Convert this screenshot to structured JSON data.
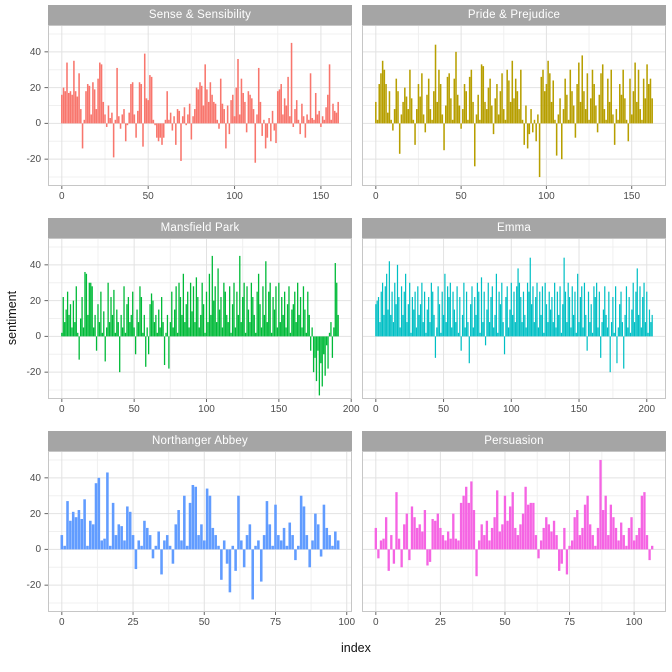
{
  "axes": {
    "x_label": "index",
    "y_label": "sentiment",
    "y_ticks": [
      40,
      20,
      0,
      -20
    ],
    "ylim": [
      -35,
      55
    ]
  },
  "theme": {
    "strip_bg": "#A5A5A5",
    "strip_text": "#FFFFFF",
    "panel_bg": "#FFFFFF",
    "grid_major": "#E2E2E2",
    "grid_minor": "#F0F0F0",
    "panel_border": "#C6C6C6",
    "tick_mark": "#666666",
    "tick_text": "#4D4D4D"
  },
  "chart_data": {
    "type": "bar",
    "title": "",
    "xlabel": "index",
    "ylabel": "sentiment",
    "ylim": [
      -35,
      55
    ],
    "y_major_ticks": [
      -20,
      0,
      20,
      40
    ],
    "grid": true,
    "legend": "none",
    "facets": [
      {
        "title": "Sense & Sensibility",
        "color": "#F8766D",
        "x_ticks": [
          0,
          50,
          100,
          150
        ],
        "values": [
          16,
          20,
          18,
          34,
          17,
          18,
          16,
          35,
          18,
          15,
          28,
          8,
          -14,
          2,
          18,
          22,
          21,
          5,
          23,
          19,
          8,
          25,
          34,
          33,
          12,
          5,
          -2,
          10,
          3,
          6,
          -19,
          2,
          31,
          4,
          -3,
          5,
          8,
          -10,
          -1,
          6,
          22,
          23,
          5,
          -8,
          7,
          23,
          22,
          -13,
          39,
          14,
          13,
          27,
          26,
          2,
          -1,
          -8,
          -10,
          -8,
          -12,
          -8,
          2,
          18,
          2,
          6,
          -4,
          4,
          -12,
          8,
          7,
          -21,
          4,
          9,
          -1,
          5,
          11,
          -9,
          4,
          8,
          20,
          19,
          23,
          21,
          10,
          33,
          19,
          12,
          23,
          16,
          12,
          11,
          2,
          -3,
          25,
          11,
          8,
          -14,
          10,
          -6,
          13,
          16,
          4,
          20,
          36,
          5,
          25,
          17,
          12,
          -5,
          18,
          16,
          14,
          8,
          -22,
          5,
          31,
          12,
          -7,
          2,
          -14,
          -8,
          3,
          -10,
          7,
          -4,
          -11,
          18,
          19,
          22,
          5,
          14,
          10,
          26,
          4,
          45,
          -2,
          8,
          13,
          2,
          -6,
          11,
          4,
          -8,
          5,
          2,
          28,
          3,
          2,
          17,
          5,
          7,
          -2,
          4,
          2,
          9,
          16,
          33,
          2,
          11,
          7,
          6,
          12
        ]
      },
      {
        "title": "Pride & Prejudice",
        "color": "#B79F00",
        "x_ticks": [
          0,
          50,
          100,
          150
        ],
        "values": [
          12,
          2,
          22,
          28,
          35,
          30,
          22,
          6,
          18,
          2,
          -4,
          8,
          25,
          18,
          -17,
          5,
          12,
          20,
          15,
          8,
          30,
          14,
          2,
          -12,
          8,
          22,
          15,
          28,
          5,
          -5,
          16,
          25,
          8,
          2,
          18,
          44,
          12,
          30,
          22,
          5,
          -15,
          10,
          26,
          28,
          14,
          2,
          25,
          40,
          16,
          10,
          -3,
          8,
          22,
          18,
          2,
          26,
          30,
          12,
          -24,
          5,
          16,
          2,
          33,
          32,
          12,
          8,
          20,
          25,
          10,
          -6,
          14,
          22,
          5,
          18,
          28,
          8,
          2,
          30,
          24,
          12,
          35,
          14,
          25,
          18,
          8,
          30,
          2,
          -12,
          10,
          -14,
          -6,
          8,
          -5,
          2,
          -10,
          5,
          -30,
          26,
          30,
          18,
          22,
          35,
          28,
          12,
          24,
          2,
          -18,
          5,
          14,
          -20,
          8,
          25,
          16,
          2,
          30,
          18,
          10,
          -8,
          22,
          34,
          12,
          38,
          18,
          8,
          28,
          2,
          14,
          30,
          22,
          10,
          -5,
          16,
          28,
          33,
          8,
          2,
          25,
          12,
          30,
          5,
          -12,
          8,
          2,
          22,
          16,
          30,
          14,
          2,
          -10,
          25,
          5,
          18,
          34,
          12,
          30,
          8,
          2,
          25,
          14,
          33,
          22,
          25,
          14
        ]
      },
      {
        "title": "Mansfield Park",
        "color": "#00BA38",
        "x_ticks": [
          0,
          50,
          100,
          150,
          200
        ],
        "values": [
          2,
          22,
          8,
          15,
          25,
          12,
          18,
          5,
          20,
          8,
          28,
          2,
          -13,
          10,
          22,
          5,
          36,
          35,
          12,
          30,
          30,
          28,
          5,
          12,
          -8,
          18,
          8,
          25,
          2,
          14,
          -14,
          5,
          30,
          8,
          22,
          12,
          26,
          2,
          15,
          8,
          -20,
          12,
          5,
          28,
          2,
          18,
          22,
          8,
          12,
          25,
          5,
          -10,
          15,
          8,
          28,
          22,
          2,
          12,
          -17,
          5,
          -10,
          18,
          24,
          20,
          8,
          12,
          2,
          15,
          5,
          22,
          8,
          -16,
          2,
          12,
          -18,
          8,
          25,
          5,
          15,
          28,
          2,
          30,
          22,
          12,
          35,
          8,
          18,
          25,
          5,
          30,
          14,
          28,
          8,
          33,
          22,
          5,
          12,
          30,
          18,
          2,
          25,
          8,
          35,
          12,
          45,
          20,
          28,
          8,
          38,
          15,
          22,
          5,
          30,
          25,
          12,
          8,
          28,
          2,
          18,
          30,
          5,
          25,
          12,
          45,
          8,
          22,
          30,
          2,
          28,
          15,
          8,
          30,
          22,
          12,
          2,
          25,
          35,
          18,
          5,
          28,
          12,
          42,
          8,
          25,
          30,
          2,
          22,
          15,
          28,
          5,
          30,
          8,
          22,
          12,
          25,
          5,
          18,
          28,
          2,
          15,
          18,
          25,
          8,
          30,
          12,
          22,
          5,
          28,
          15,
          2,
          25,
          12,
          -8,
          5,
          -20,
          -12,
          -25,
          -8,
          -33,
          -15,
          -28,
          -10,
          -22,
          -5,
          -18,
          2,
          8,
          -12,
          5,
          41,
          30,
          12
        ]
      },
      {
        "title": "Emma",
        "color": "#00BFC4",
        "x_ticks": [
          0,
          50,
          100,
          150,
          200
        ],
        "values": [
          18,
          20,
          22,
          8,
          25,
          30,
          12,
          28,
          35,
          15,
          42,
          12,
          25,
          8,
          30,
          18,
          40,
          22,
          5,
          28,
          12,
          25,
          35,
          8,
          18,
          30,
          2,
          22,
          15,
          25,
          5,
          28,
          12,
          18,
          30,
          8,
          25,
          2,
          15,
          22,
          8,
          30,
          25,
          12,
          -12,
          5,
          28,
          18,
          2,
          25,
          12,
          35,
          8,
          28,
          22,
          30,
          5,
          25,
          15,
          8,
          28,
          2,
          22,
          -8,
          12,
          30,
          5,
          25,
          8,
          -15,
          18,
          28,
          5,
          22,
          12,
          30,
          25,
          2,
          33,
          8,
          25,
          -5,
          15,
          30,
          8,
          22,
          28,
          5,
          12,
          35,
          2,
          25,
          18,
          30,
          8,
          -10,
          22,
          28,
          5,
          15,
          30,
          12,
          25,
          8,
          28,
          38,
          30,
          22,
          8,
          25,
          12,
          5,
          30,
          25,
          44,
          18,
          28,
          8,
          22,
          30,
          5,
          25,
          12,
          28,
          2,
          30,
          18,
          8,
          25,
          15,
          22,
          8,
          30,
          5,
          25,
          12,
          28,
          2,
          18,
          44,
          25,
          8,
          30,
          22,
          5,
          28,
          12,
          25,
          2,
          35,
          8,
          22,
          28,
          5,
          30,
          12,
          -8,
          25,
          8,
          18,
          2,
          28,
          22,
          30,
          5,
          25,
          -12,
          8,
          15,
          28,
          12,
          5,
          25,
          -20,
          8,
          22,
          2,
          28,
          -15,
          5,
          18,
          25,
          8,
          -18,
          12,
          28,
          5,
          22,
          2,
          15,
          30,
          8,
          25,
          38,
          12,
          28,
          5,
          22,
          30,
          8,
          25,
          2,
          15,
          8,
          12
        ]
      },
      {
        "title": "Northanger Abbey",
        "color": "#619CFF",
        "x_ticks": [
          0,
          25,
          50,
          75,
          100
        ],
        "values": [
          8,
          2,
          27,
          16,
          21,
          18,
          22,
          17,
          28,
          2,
          16,
          14,
          37,
          40,
          5,
          6,
          43,
          2,
          26,
          8,
          14,
          13,
          5,
          24,
          21,
          8,
          -11,
          5,
          2,
          16,
          12,
          8,
          -5,
          2,
          10,
          -14,
          5,
          8,
          2,
          -8,
          14,
          22,
          5,
          30,
          2,
          26,
          36,
          35,
          8,
          14,
          5,
          34,
          30,
          12,
          8,
          2,
          -17,
          5,
          -8,
          -24,
          2,
          -12,
          30,
          5,
          -10,
          8,
          14,
          -28,
          2,
          5,
          -18,
          8,
          27,
          14,
          2,
          25,
          8,
          5,
          12,
          2,
          15,
          8,
          -6,
          2,
          30,
          24,
          8,
          -10,
          5,
          20,
          14,
          -4,
          25,
          12,
          8,
          2,
          10,
          5
        ]
      },
      {
        "title": "Persuasion",
        "color": "#F564E3",
        "x_ticks": [
          0,
          25,
          50,
          75,
          100
        ],
        "values": [
          12,
          -5,
          5,
          6,
          18,
          -12,
          8,
          -8,
          32,
          6,
          -10,
          14,
          20,
          -6,
          24,
          18,
          12,
          14,
          10,
          22,
          -9,
          -7,
          17,
          16,
          20,
          12,
          8,
          5,
          10,
          6,
          20,
          6,
          5,
          26,
          30,
          35,
          26,
          38,
          22,
          -15,
          5,
          14,
          8,
          16,
          5,
          12,
          18,
          33,
          10,
          14,
          30,
          16,
          24,
          32,
          12,
          8,
          14,
          20,
          35,
          25,
          26,
          26,
          8,
          -5,
          5,
          12,
          18,
          14,
          10,
          16,
          8,
          -12,
          -8,
          12,
          -14,
          2,
          5,
          18,
          22,
          8,
          12,
          25,
          30,
          14,
          8,
          2,
          12,
          50,
          22,
          30,
          8,
          25,
          18,
          12,
          5,
          15,
          8,
          2,
          12,
          18,
          5,
          8,
          12,
          30,
          32,
          8,
          -6,
          2
        ]
      }
    ]
  }
}
